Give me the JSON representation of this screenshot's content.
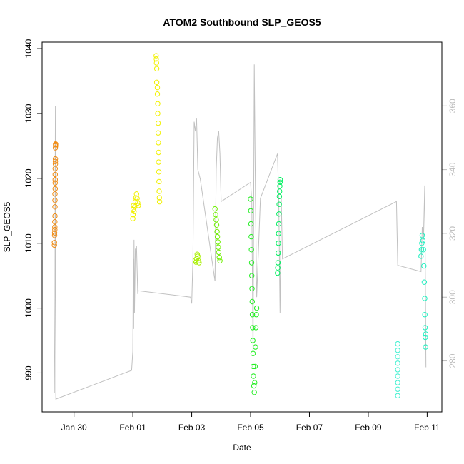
{
  "chart_data": {
    "type": "scatter",
    "title": "ATOM2 Southbound SLP_GEOS5",
    "xlabel": "Date",
    "ylabel": "SLP_GEOS5",
    "x_axis": {
      "kind": "date",
      "range": [
        "2016-01-28T22:00",
        "2016-02-11T12:00"
      ],
      "ticks": [
        {
          "value": "2016-01-30",
          "label": "Jan 30"
        },
        {
          "value": "2016-02-01",
          "label": "Feb 01"
        },
        {
          "value": "2016-02-03",
          "label": "Feb 03"
        },
        {
          "value": "2016-02-05",
          "label": "Feb 05"
        },
        {
          "value": "2016-02-07",
          "label": "Feb 07"
        },
        {
          "value": "2016-02-09",
          "label": "Feb 09"
        },
        {
          "value": "2016-02-11",
          "label": "Feb 11"
        }
      ]
    },
    "y_axis_left": {
      "range": [
        984,
        1041
      ],
      "ticks": [
        990,
        1000,
        1010,
        1020,
        1030,
        1040
      ]
    },
    "y_axis_right": {
      "range": [
        264,
        380
      ],
      "ticks": [
        280,
        300,
        320,
        340,
        360
      ],
      "color": "#bdbdbd"
    },
    "grid": false,
    "marker_style": "open-circle",
    "series": [
      {
        "color": "#f08a10",
        "points": [
          [
            "2016-01-29T08:00",
            1009.7
          ],
          [
            "2016-01-29T08:00",
            1010.1
          ],
          [
            "2016-01-29T08:10",
            1011.2
          ],
          [
            "2016-01-29T08:10",
            1011.6
          ],
          [
            "2016-01-29T08:20",
            1012.1
          ],
          [
            "2016-01-29T08:20",
            1012.5
          ],
          [
            "2016-01-29T08:20",
            1013.3
          ],
          [
            "2016-01-29T08:30",
            1014.2
          ],
          [
            "2016-01-29T08:30",
            1015.6
          ],
          [
            "2016-01-29T08:30",
            1016.6
          ],
          [
            "2016-01-29T08:30",
            1017.6
          ],
          [
            "2016-01-29T08:40",
            1018.4
          ],
          [
            "2016-01-29T08:40",
            1019.3
          ],
          [
            "2016-01-29T08:40",
            1019.8
          ],
          [
            "2016-01-29T08:40",
            1020.6
          ],
          [
            "2016-01-29T08:40",
            1021.5
          ],
          [
            "2016-01-29T08:50",
            1022.2
          ],
          [
            "2016-01-29T08:50",
            1022.6
          ],
          [
            "2016-01-29T08:50",
            1023.0
          ],
          [
            "2016-01-29T08:50",
            1024.7
          ],
          [
            "2016-01-29T09:00",
            1025.0
          ],
          [
            "2016-01-29T09:00",
            1025.2
          ],
          [
            "2016-01-29T09:00",
            1025.3
          ]
        ]
      },
      {
        "color": "#f1f100",
        "points": [
          [
            "2016-02-01T00:00",
            1013.8
          ],
          [
            "2016-02-01T00:10",
            1014.4
          ],
          [
            "2016-02-01T00:20",
            1015.2
          ],
          [
            "2016-02-01T00:30",
            1015.8
          ],
          [
            "2016-02-01T01:00",
            1014.9
          ],
          [
            "2016-02-01T01:30",
            1015.6
          ],
          [
            "2016-02-01T02:00",
            1016.4
          ],
          [
            "2016-02-01T02:30",
            1017.0
          ],
          [
            "2016-02-01T03:00",
            1017.6
          ],
          [
            "2016-02-01T03:30",
            1016.9
          ],
          [
            "2016-02-01T04:00",
            1016.2
          ],
          [
            "2016-02-01T04:30",
            1015.8
          ],
          [
            "2016-02-01T19:00",
            1038.9
          ],
          [
            "2016-02-01T19:10",
            1038.4
          ],
          [
            "2016-02-01T19:20",
            1037.8
          ],
          [
            "2016-02-01T19:30",
            1036.9
          ],
          [
            "2016-02-01T19:30",
            1034.8
          ],
          [
            "2016-02-01T20:00",
            1034.0
          ],
          [
            "2016-02-01T20:00",
            1033.0
          ],
          [
            "2016-02-01T20:20",
            1031.5
          ],
          [
            "2016-02-01T20:20",
            1030.0
          ],
          [
            "2016-02-01T20:40",
            1028.5
          ],
          [
            "2016-02-01T20:40",
            1027.0
          ],
          [
            "2016-02-01T20:50",
            1025.5
          ],
          [
            "2016-02-01T21:00",
            1024.0
          ],
          [
            "2016-02-01T21:00",
            1022.5
          ],
          [
            "2016-02-01T21:10",
            1021.0
          ],
          [
            "2016-02-01T21:20",
            1019.5
          ],
          [
            "2016-02-01T21:30",
            1018.0
          ],
          [
            "2016-02-01T21:40",
            1017.0
          ],
          [
            "2016-02-01T21:50",
            1016.4
          ]
        ]
      },
      {
        "color": "#a8f000",
        "points": [
          [
            "2016-02-03T03:00",
            1007.4
          ],
          [
            "2016-02-03T03:30",
            1007.1
          ],
          [
            "2016-02-03T04:00",
            1007.6
          ],
          [
            "2016-02-03T04:30",
            1008.3
          ],
          [
            "2016-02-03T05:00",
            1008.0
          ],
          [
            "2016-02-03T05:30",
            1007.3
          ],
          [
            "2016-02-03T06:00",
            1007.0
          ]
        ]
      },
      {
        "color": "#6ef000",
        "points": [
          [
            "2016-02-03T19:00",
            1015.3
          ],
          [
            "2016-02-03T19:30",
            1014.4
          ],
          [
            "2016-02-03T20:00",
            1013.6
          ],
          [
            "2016-02-03T20:20",
            1012.8
          ],
          [
            "2016-02-03T20:40",
            1011.8
          ],
          [
            "2016-02-03T21:00",
            1011.0
          ],
          [
            "2016-02-03T21:20",
            1010.2
          ],
          [
            "2016-02-03T21:40",
            1009.4
          ],
          [
            "2016-02-03T22:00",
            1008.6
          ],
          [
            "2016-02-03T22:30",
            1007.8
          ],
          [
            "2016-02-03T23:00",
            1007.3
          ]
        ]
      },
      {
        "color": "#22ee22",
        "points": [
          [
            "2016-02-05T00:00",
            1016.8
          ],
          [
            "2016-02-05T00:10",
            1015.0
          ],
          [
            "2016-02-05T00:20",
            1013.0
          ],
          [
            "2016-02-05T00:30",
            1011.0
          ],
          [
            "2016-02-05T00:40",
            1009.0
          ],
          [
            "2016-02-05T00:50",
            1007.0
          ],
          [
            "2016-02-05T01:00",
            1005.0
          ],
          [
            "2016-02-05T01:10",
            1003.0
          ],
          [
            "2016-02-05T01:20",
            1001.0
          ],
          [
            "2016-02-05T01:30",
            999.0
          ],
          [
            "2016-02-05T01:40",
            997.0
          ],
          [
            "2016-02-05T01:50",
            995.0
          ],
          [
            "2016-02-05T02:00",
            993.0
          ],
          [
            "2016-02-05T02:10",
            991.0
          ],
          [
            "2016-02-05T02:20",
            989.5
          ],
          [
            "2016-02-05T02:40",
            988.0
          ],
          [
            "2016-02-05T03:00",
            987.0
          ],
          [
            "2016-02-05T03:20",
            988.5
          ],
          [
            "2016-02-05T03:40",
            991.0
          ],
          [
            "2016-02-05T04:00",
            994.0
          ],
          [
            "2016-02-05T04:20",
            997.0
          ],
          [
            "2016-02-05T04:40",
            999.0
          ],
          [
            "2016-02-05T05:00",
            1000.0
          ]
        ]
      },
      {
        "color": "#00f060",
        "points": [
          [
            "2016-02-05T22:00",
            1005.4
          ],
          [
            "2016-02-05T22:10",
            1006.2
          ],
          [
            "2016-02-05T22:20",
            1007.0
          ],
          [
            "2016-02-05T22:30",
            1008.5
          ],
          [
            "2016-02-05T22:40",
            1010.0
          ],
          [
            "2016-02-05T22:50",
            1011.5
          ],
          [
            "2016-02-05T23:00",
            1013.0
          ],
          [
            "2016-02-05T23:10",
            1014.5
          ],
          [
            "2016-02-05T23:20",
            1016.0
          ],
          [
            "2016-02-05T23:30",
            1017.2
          ],
          [
            "2016-02-05T23:40",
            1018.0
          ],
          [
            "2016-02-05T23:50",
            1018.8
          ],
          [
            "2016-02-06T00:00",
            1019.4
          ],
          [
            "2016-02-06T00:10",
            1019.8
          ]
        ]
      },
      {
        "color": "#40f0d0",
        "points": [
          [
            "2016-02-10T00:00",
            986.5
          ],
          [
            "2016-02-10T00:00",
            987.5
          ],
          [
            "2016-02-10T00:00",
            988.5
          ],
          [
            "2016-02-10T00:00",
            989.5
          ],
          [
            "2016-02-10T00:00",
            990.5
          ],
          [
            "2016-02-10T00:00",
            991.5
          ],
          [
            "2016-02-10T00:00",
            992.5
          ],
          [
            "2016-02-10T00:00",
            993.5
          ],
          [
            "2016-02-10T00:00",
            994.5
          ]
        ]
      },
      {
        "color": "#20f0c0",
        "points": [
          [
            "2016-02-10T19:00",
            1008.0
          ],
          [
            "2016-02-10T19:20",
            1009.0
          ],
          [
            "2016-02-10T19:40",
            1010.0
          ],
          [
            "2016-02-10T20:00",
            1011.2
          ],
          [
            "2016-02-10T20:30",
            1010.4
          ],
          [
            "2016-02-10T21:00",
            1009.0
          ],
          [
            "2016-02-10T21:20",
            1006.5
          ],
          [
            "2016-02-10T21:40",
            1004.0
          ],
          [
            "2016-02-10T22:00",
            1001.5
          ],
          [
            "2016-02-10T22:10",
            999.0
          ],
          [
            "2016-02-10T22:20",
            997.0
          ],
          [
            "2016-02-10T22:30",
            995.5
          ],
          [
            "2016-02-10T22:40",
            994.0
          ],
          [
            "2016-02-10T22:50",
            996.0
          ]
        ]
      }
    ],
    "secondary_line": {
      "axis": "right",
      "color": "#c0c0c0",
      "points": [
        [
          "2016-01-29T08:00",
          270.0
        ],
        [
          "2016-01-29T08:30",
          300.0
        ],
        [
          "2016-01-29T08:40",
          340.0
        ],
        [
          "2016-01-29T08:50",
          360.0
        ],
        [
          "2016-01-29T09:00",
          320.0
        ],
        [
          "2016-01-29T09:10",
          268.0
        ],
        [
          "2016-01-31T23:00",
          277.0
        ],
        [
          "2016-02-01T00:00",
          283.0
        ],
        [
          "2016-02-01T00:20",
          312.0
        ],
        [
          "2016-02-01T00:40",
          290.0
        ],
        [
          "2016-02-01T01:00",
          318.0
        ],
        [
          "2016-02-01T01:20",
          295.0
        ],
        [
          "2016-02-01T02:00",
          315.0
        ],
        [
          "2016-02-01T03:00",
          316.0
        ],
        [
          "2016-02-01T04:00",
          301.0
        ],
        [
          "2016-02-01T04:30",
          302.0
        ],
        [
          "2016-02-02T23:00",
          300.0
        ],
        [
          "2016-02-03T00:00",
          298.0
        ],
        [
          "2016-02-03T01:00",
          312.0
        ],
        [
          "2016-02-03T02:00",
          355.0
        ],
        [
          "2016-02-03T03:00",
          352.0
        ],
        [
          "2016-02-03T04:00",
          356.0
        ],
        [
          "2016-02-03T05:00",
          340.0
        ],
        [
          "2016-02-03T07:00",
          337.0
        ],
        [
          "2016-02-03T19:00",
          305.0
        ],
        [
          "2016-02-03T20:00",
          340.0
        ],
        [
          "2016-02-03T21:00",
          350.0
        ],
        [
          "2016-02-03T22:00",
          352.0
        ],
        [
          "2016-02-03T23:00",
          345.0
        ],
        [
          "2016-02-04T00:00",
          330.0
        ],
        [
          "2016-02-05T00:00",
          336.0
        ],
        [
          "2016-02-05T01:00",
          330.0
        ],
        [
          "2016-02-05T02:00",
          282.0
        ],
        [
          "2016-02-05T03:00",
          373.0
        ],
        [
          "2016-02-05T04:00",
          330.0
        ],
        [
          "2016-02-05T05:00",
          300.0
        ],
        [
          "2016-02-05T08:00",
          331.0
        ],
        [
          "2016-02-05T22:00",
          345.0
        ],
        [
          "2016-02-05T23:00",
          330.0
        ],
        [
          "2016-02-06T00:00",
          295.0
        ],
        [
          "2016-02-06T01:00",
          331.0
        ],
        [
          "2016-02-06T02:00",
          312.0
        ],
        [
          "2016-02-09T23:00",
          330.0
        ],
        [
          "2016-02-10T00:00",
          310.0
        ],
        [
          "2016-02-10T19:00",
          308.0
        ],
        [
          "2016-02-10T20:00",
          322.0
        ],
        [
          "2016-02-10T21:00",
          318.0
        ],
        [
          "2016-02-10T22:00",
          335.0
        ],
        [
          "2016-02-10T23:00",
          278.0
        ]
      ]
    }
  }
}
